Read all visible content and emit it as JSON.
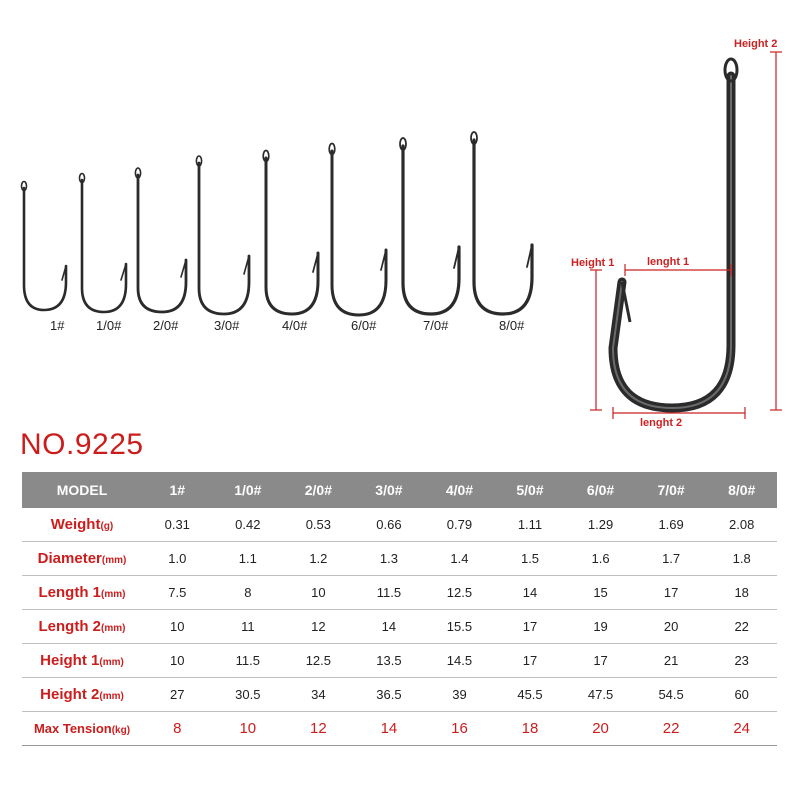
{
  "model_title": "NO.9225",
  "hook_sizes": [
    "1#",
    "1/0#",
    "2/0#",
    "3/0#",
    "4/0#",
    "6/0#",
    "7/0#",
    "8/0#"
  ],
  "diagram_labels": {
    "height2": "Height 2",
    "height1": "Height 1",
    "length1": "lenght 1",
    "length2": "lenght 2"
  },
  "colors": {
    "accent": "#cc1d1d",
    "header_bg": "#8a8a8a",
    "hook": "#2b2b2b"
  },
  "table": {
    "header": {
      "label": "MODEL",
      "cols": [
        "1#",
        "1/0#",
        "2/0#",
        "3/0#",
        "4/0#",
        "5/0#",
        "6/0#",
        "7/0#",
        "8/0#"
      ]
    },
    "rows": [
      {
        "label": "Weight",
        "unit": "(g)",
        "values": [
          "0.31",
          "0.42",
          "0.53",
          "0.66",
          "0.79",
          "1.11",
          "1.29",
          "1.69",
          "2.08"
        ]
      },
      {
        "label": "Diameter",
        "unit": "(mm)",
        "values": [
          "1.0",
          "1.1",
          "1.2",
          "1.3",
          "1.4",
          "1.5",
          "1.6",
          "1.7",
          "1.8"
        ]
      },
      {
        "label": "Length 1",
        "unit": "(mm)",
        "values": [
          "7.5",
          "8",
          "10",
          "11.5",
          "12.5",
          "14",
          "15",
          "17",
          "18"
        ]
      },
      {
        "label": "Length 2",
        "unit": "(mm)",
        "values": [
          "10",
          "11",
          "12",
          "14",
          "15.5",
          "17",
          "19",
          "20",
          "22"
        ]
      },
      {
        "label": "Height 1",
        "unit": "(mm)",
        "values": [
          "10",
          "11.5",
          "12.5",
          "13.5",
          "14.5",
          "17",
          "17",
          "21",
          "23"
        ]
      },
      {
        "label": "Height 2",
        "unit": "(mm)",
        "values": [
          "27",
          "30.5",
          "34",
          "36.5",
          "39",
          "45.5",
          "47.5",
          "54.5",
          "60"
        ]
      },
      {
        "label": "Max Tension",
        "unit": "(kg)",
        "values": [
          "8",
          "10",
          "12",
          "14",
          "16",
          "18",
          "20",
          "22",
          "24"
        ]
      }
    ]
  }
}
